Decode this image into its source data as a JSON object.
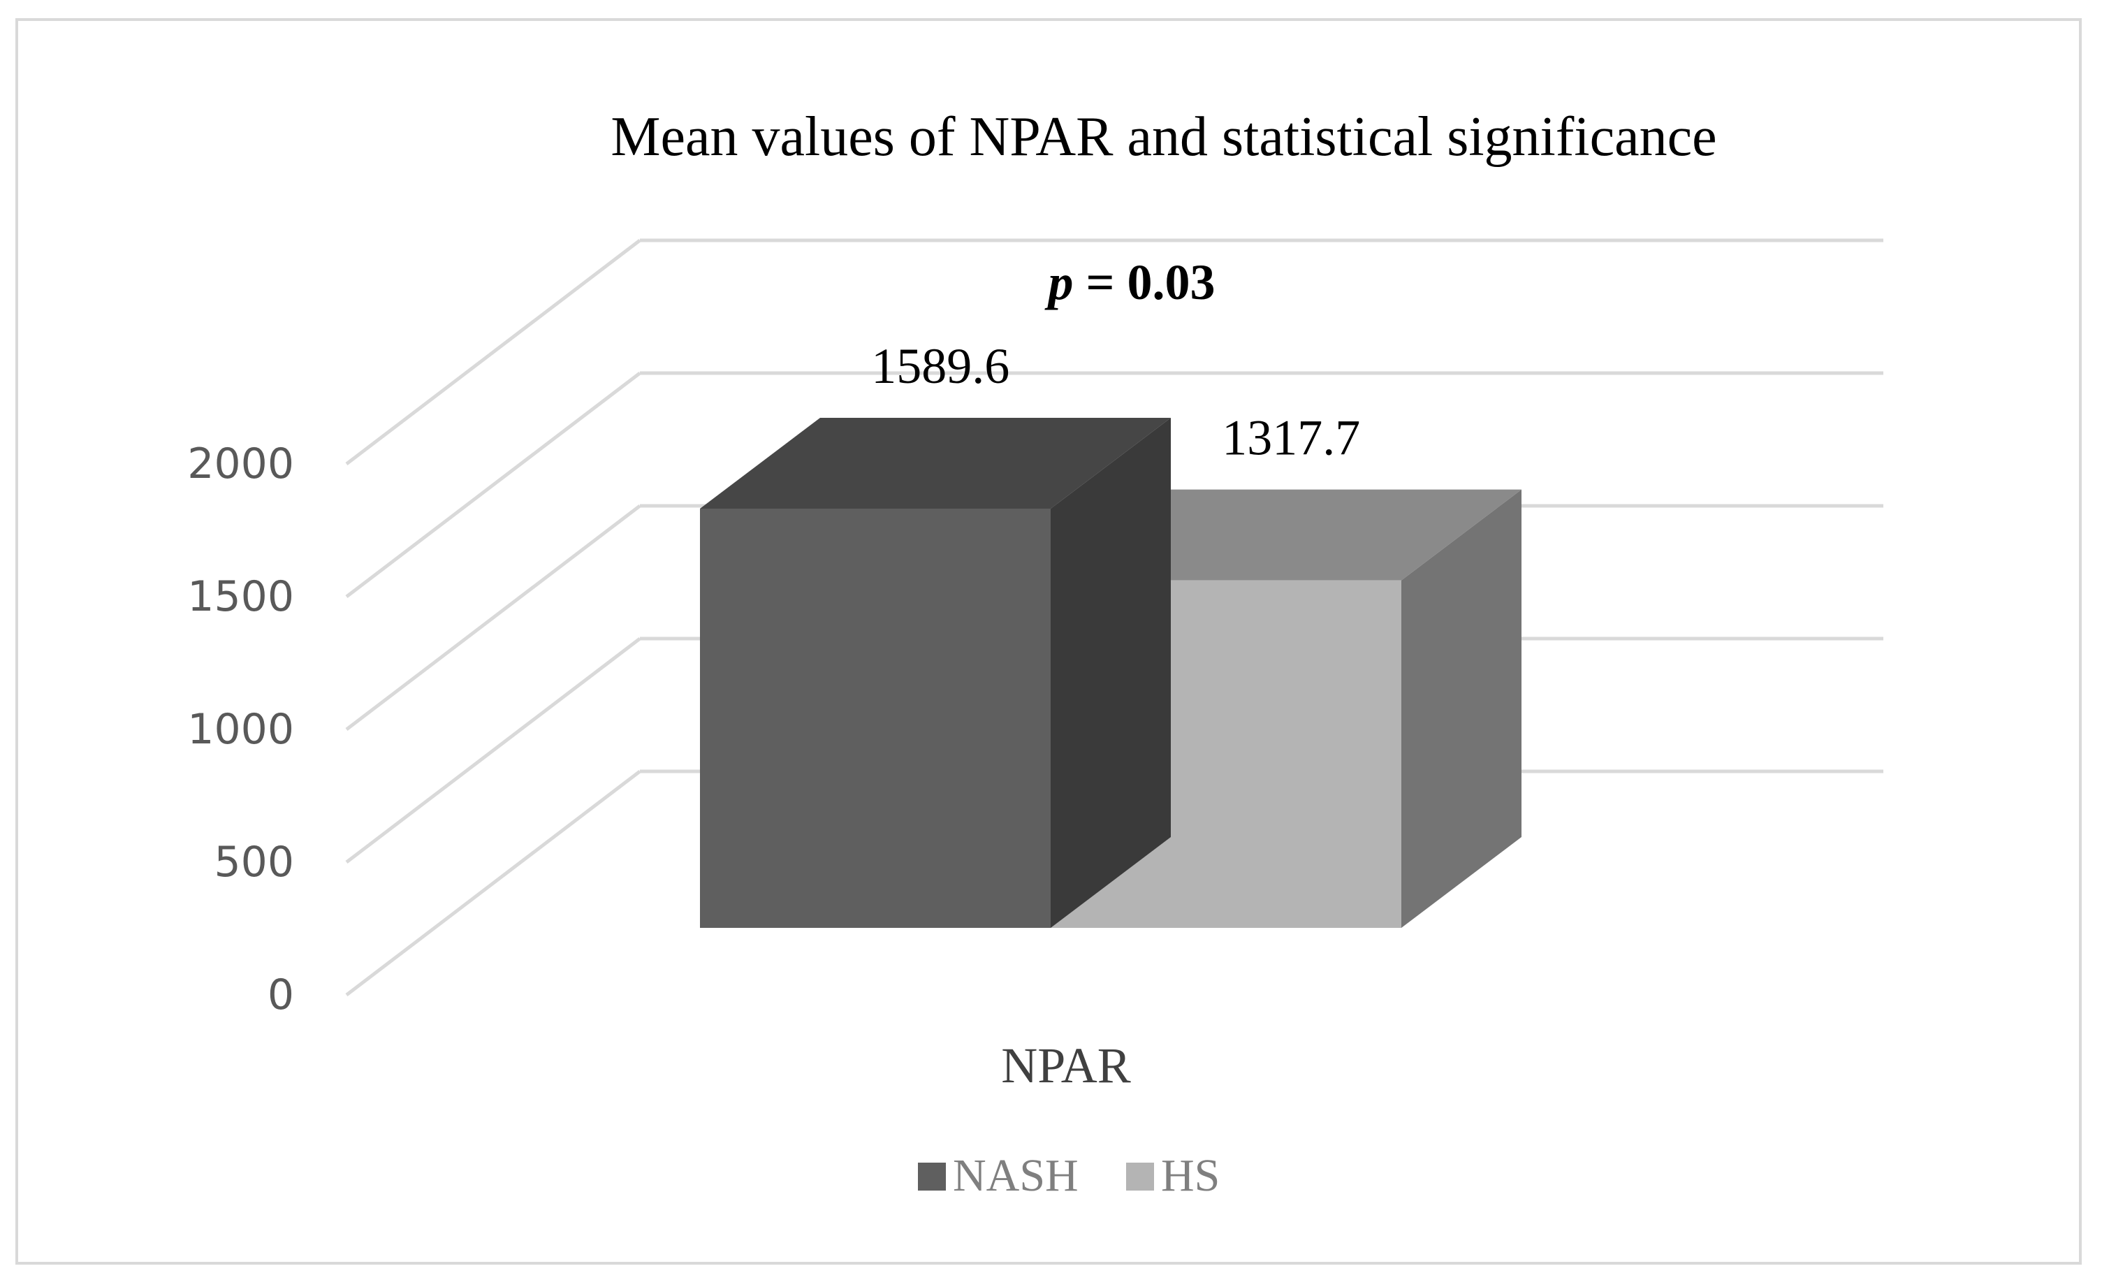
{
  "chart_data": {
    "type": "bar",
    "title": "Mean values of NPAR and statistical significance",
    "annotation": "p = 0.03",
    "annotation_italic_part": "p",
    "annotation_rest": " = 0.03",
    "categories": [
      "NPAR"
    ],
    "series": [
      {
        "name": "NASH",
        "values": [
          1589.6
        ],
        "label": "1589.6",
        "color": "#5f5f5f",
        "top_color": "#464646",
        "side_color": "#3a3a3a"
      },
      {
        "name": "HS",
        "values": [
          1317.7
        ],
        "label": "1317.7",
        "color": "#b4b4b4",
        "top_color": "#8a8a8a",
        "side_color": "#747474"
      }
    ],
    "yticks": [
      "0",
      "500",
      "1000",
      "1500",
      "2000"
    ],
    "ylim": [
      0,
      2000
    ],
    "grid": true,
    "style": "3d-column",
    "legend_position": "bottom",
    "grid_color": "#d9d9d9"
  }
}
